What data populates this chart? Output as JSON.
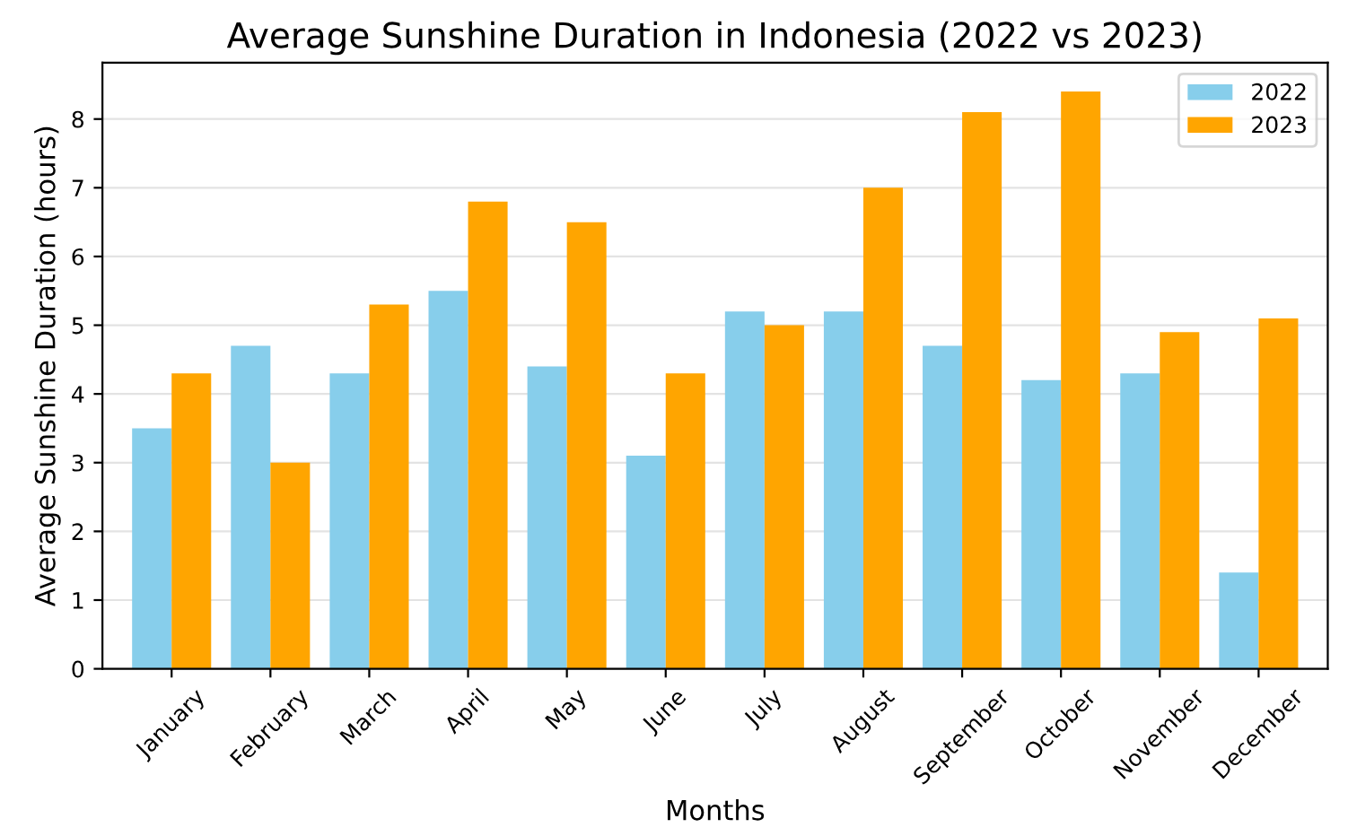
{
  "chart_data": {
    "type": "bar",
    "title": "Average Sunshine Duration in Indonesia (2022 vs 2023)",
    "xlabel": "Months",
    "ylabel": "Average Sunshine Duration (hours)",
    "categories": [
      "January",
      "February",
      "March",
      "April",
      "May",
      "June",
      "July",
      "August",
      "September",
      "October",
      "November",
      "December"
    ],
    "series": [
      {
        "name": "2022",
        "color": "#87ceeb",
        "values": [
          3.5,
          4.7,
          4.3,
          5.5,
          4.4,
          3.1,
          5.2,
          5.2,
          4.7,
          4.2,
          4.3,
          1.4
        ]
      },
      {
        "name": "2023",
        "color": "#ffa500",
        "values": [
          4.3,
          3.0,
          5.3,
          6.8,
          6.5,
          4.3,
          5.0,
          7.0,
          8.1,
          8.4,
          4.9,
          5.1
        ]
      }
    ],
    "ylim": [
      0,
      8.82
    ],
    "yticks": [
      0,
      1,
      2,
      3,
      4,
      5,
      6,
      7,
      8
    ],
    "grid": "y",
    "legend": "top right"
  }
}
